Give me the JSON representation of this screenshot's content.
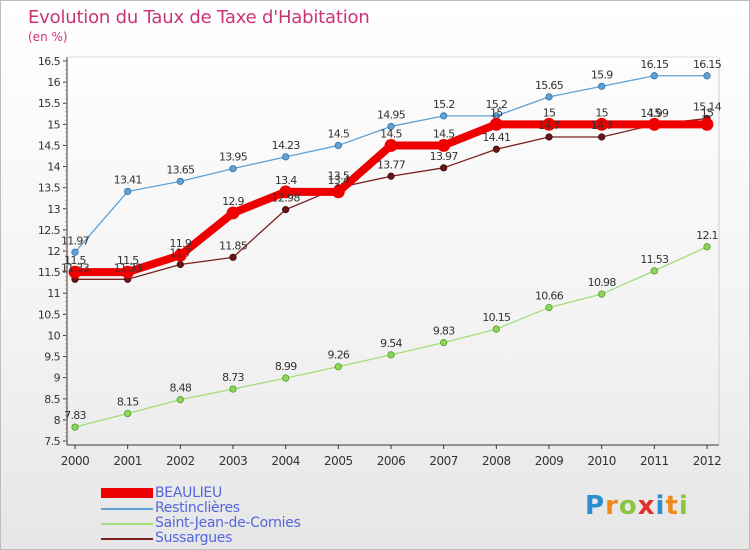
{
  "header": {
    "title": "Evolution du Taux de Taxe d'Habitation",
    "subtitle": "(en %)"
  },
  "logo": {
    "letters": [
      "P",
      "r",
      "o",
      "x",
      "i",
      "t",
      "i"
    ],
    "colors": [
      "#2a8fd0",
      "#f08a1c",
      "#8cc63f",
      "#e0302a",
      "#2a8fd0",
      "#f08a1c",
      "#8cc63f"
    ]
  },
  "chart_data": {
    "type": "line",
    "x": [
      "2000",
      "2001",
      "2002",
      "2003",
      "2004",
      "2005",
      "2006",
      "2007",
      "2008",
      "2009",
      "2010",
      "2011",
      "2012"
    ],
    "ylim": [
      7.5,
      16.5
    ],
    "yticks": [
      "7.5",
      "8",
      "8.5",
      "9",
      "9.5",
      "10",
      "10.5",
      "11",
      "11.5",
      "12",
      "12.5",
      "13",
      "13.5",
      "14",
      "14.5",
      "15",
      "15.5",
      "16",
      "16.5"
    ],
    "grid": false,
    "legend_position": "bottom-left",
    "series": [
      {
        "name": "BEAULIEU",
        "color": "#ee0000",
        "values": [
          11.5,
          11.5,
          11.9,
          12.9,
          13.4,
          13.4,
          14.5,
          14.5,
          15,
          15,
          15,
          15,
          15
        ],
        "labels": [
          "11.5",
          "11.5",
          "11.9",
          "12.9",
          "13.4",
          "13.4",
          "14.5",
          "14.5",
          "15",
          "15",
          "15",
          "15",
          "15"
        ]
      },
      {
        "name": "Restinclières",
        "color": "#5fa2d6",
        "values": [
          11.97,
          13.41,
          13.65,
          13.95,
          14.23,
          14.5,
          14.95,
          15.2,
          15.2,
          15.65,
          15.9,
          16.15,
          16.15
        ],
        "labels": [
          "11.97",
          "13.41",
          "13.65",
          "13.95",
          "14.23",
          "14.5",
          "14.95",
          "15.2",
          "15.2",
          "15.65",
          "15.9",
          "16.15",
          "16.15"
        ]
      },
      {
        "name": "Saint-Jean-de-Cornies",
        "color": "#a6dd7a",
        "values": [
          7.83,
          8.15,
          8.48,
          8.73,
          8.99,
          9.26,
          9.54,
          9.83,
          10.15,
          10.66,
          10.98,
          11.53,
          12.1
        ],
        "labels": [
          "7.83",
          "8.15",
          "8.48",
          "8.73",
          "8.99",
          "9.26",
          "9.54",
          "9.83",
          "10.15",
          "10.66",
          "10.98",
          "11.53",
          "12.1"
        ]
      },
      {
        "name": "Sussargues",
        "color": "#7a2020",
        "values": [
          11.33,
          11.33,
          11.68,
          11.85,
          12.98,
          13.5,
          13.77,
          13.97,
          14.41,
          14.7,
          14.7,
          14.99,
          15.14
        ],
        "labels": [
          "11.33",
          "11.33",
          "11.7",
          "11.85",
          "12.98",
          "13.5",
          "13.77",
          "13.97",
          "14.41",
          "14.7",
          "14.7",
          "14.99",
          "15.14"
        ]
      }
    ]
  }
}
